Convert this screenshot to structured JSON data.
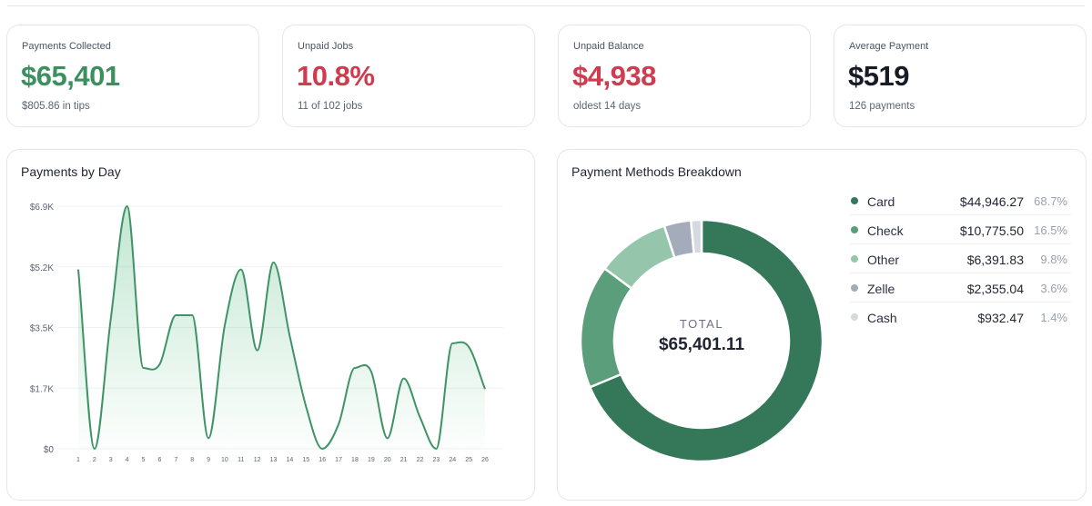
{
  "colors": {
    "green": "#3c9060",
    "red": "#cf3b4f",
    "dark": "#161b26",
    "line": "#3f9366"
  },
  "stats": [
    {
      "label": "Payments Collected",
      "value": "$65,401",
      "sub": "$805.86 in tips",
      "color": "#3c9060"
    },
    {
      "label": "Unpaid Jobs",
      "value": "10.8%",
      "sub": "11 of 102 jobs",
      "color": "#cf3b4f"
    },
    {
      "label": "Unpaid Balance",
      "value": "$4,938",
      "sub": "oldest 14 days",
      "color": "#cf3b4f"
    },
    {
      "label": "Average Payment",
      "value": "$519",
      "sub": "126 payments",
      "color": "#161b26"
    }
  ],
  "chart_data": [
    {
      "type": "area",
      "title": "Payments by Day",
      "x": [
        "1",
        "2",
        "3",
        "4",
        "5",
        "6",
        "7",
        "8",
        "9",
        "10",
        "11",
        "12",
        "13",
        "14",
        "15",
        "16",
        "17",
        "18",
        "19",
        "20",
        "21",
        "22",
        "23",
        "24",
        "25",
        "26"
      ],
      "values": [
        5100,
        0,
        3700,
        6900,
        2300,
        2400,
        3800,
        3800,
        300,
        3500,
        5100,
        2800,
        5300,
        3200,
        1200,
        0,
        700,
        2300,
        2200,
        300,
        2000,
        900,
        0,
        3000,
        2900,
        1700
      ],
      "yticks": [
        "$0",
        "$1.7K",
        "$3.5K",
        "$5.2K",
        "$6.9K"
      ],
      "ylim": [
        0,
        6900
      ],
      "grid": true
    },
    {
      "type": "pie",
      "title": "Payment Methods Breakdown",
      "total_label": "TOTAL",
      "total_value": "$65,401.11",
      "slices": [
        {
          "name": "Card",
          "amount": "$44,946.27",
          "percent": "68.7%",
          "value": 68.7,
          "color": "#347759"
        },
        {
          "name": "Check",
          "amount": "$10,775.50",
          "percent": "16.5%",
          "value": 16.5,
          "color": "#5a9e7c"
        },
        {
          "name": "Other",
          "amount": "$6,391.83",
          "percent": "9.8%",
          "value": 9.8,
          "color": "#95c6ac"
        },
        {
          "name": "Zelle",
          "amount": "$2,355.04",
          "percent": "3.6%",
          "value": 3.6,
          "color": "#a4abba"
        },
        {
          "name": "Cash",
          "amount": "$932.47",
          "percent": "1.4%",
          "value": 1.4,
          "color": "#d5d9e0"
        }
      ]
    }
  ]
}
